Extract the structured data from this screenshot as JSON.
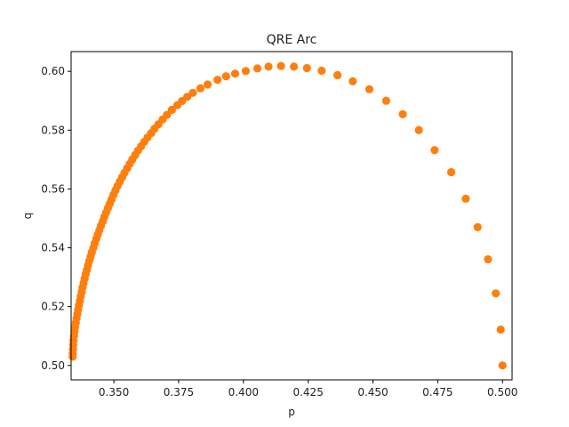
{
  "chart_data": {
    "type": "scatter",
    "title": "QRE Arc",
    "xlabel": "p",
    "ylabel": "q",
    "xlim": [
      0.3335,
      0.5037
    ],
    "ylim": [
      0.4951,
      0.6067
    ],
    "grid": false,
    "xticks": [
      "0.350",
      "0.375",
      "0.400",
      "0.425",
      "0.450",
      "0.475",
      "0.500"
    ],
    "yticks": [
      "0.50",
      "0.52",
      "0.54",
      "0.56",
      "0.58",
      "0.60"
    ],
    "marker_color": "#ff7f0e",
    "series": [
      {
        "values": [
          [
            0.5,
            0.5
          ],
          [
            0.4993,
            0.5122
          ],
          [
            0.4974,
            0.5245
          ],
          [
            0.4944,
            0.5361
          ],
          [
            0.4904,
            0.547
          ],
          [
            0.4858,
            0.5567
          ],
          [
            0.4802,
            0.5657
          ],
          [
            0.4738,
            0.5732
          ],
          [
            0.4677,
            0.58
          ],
          [
            0.4615,
            0.5854
          ],
          [
            0.4551,
            0.59
          ],
          [
            0.4486,
            0.5939
          ],
          [
            0.4422,
            0.5966
          ],
          [
            0.4363,
            0.5987
          ],
          [
            0.4302,
            0.6002
          ],
          [
            0.4245,
            0.6011
          ],
          [
            0.4195,
            0.6016
          ],
          [
            0.4145,
            0.6018
          ],
          [
            0.4097,
            0.6016
          ],
          [
            0.4054,
            0.601
          ],
          [
            0.4009,
            0.6001
          ],
          [
            0.3968,
            0.5992
          ],
          [
            0.3933,
            0.5983
          ],
          [
            0.39,
            0.5971
          ],
          [
            0.3862,
            0.5955
          ],
          [
            0.3834,
            0.5942
          ],
          [
            0.3805,
            0.5927
          ],
          [
            0.3783,
            0.5913
          ],
          [
            0.3763,
            0.5899
          ],
          [
            0.3745,
            0.5885
          ],
          [
            0.3724,
            0.5869
          ],
          [
            0.3705,
            0.5852
          ],
          [
            0.3688,
            0.5836
          ],
          [
            0.3672,
            0.582
          ],
          [
            0.3657,
            0.5805
          ],
          [
            0.3644,
            0.579
          ],
          [
            0.363,
            0.5775
          ],
          [
            0.3617,
            0.576
          ],
          [
            0.3605,
            0.5745
          ],
          [
            0.3593,
            0.573
          ],
          [
            0.3582,
            0.5715
          ],
          [
            0.3571,
            0.57
          ],
          [
            0.3561,
            0.5685
          ],
          [
            0.3551,
            0.567
          ],
          [
            0.3541,
            0.5655
          ],
          [
            0.3532,
            0.564
          ],
          [
            0.3523,
            0.5625
          ],
          [
            0.3514,
            0.561
          ],
          [
            0.3506,
            0.5595
          ],
          [
            0.3498,
            0.558
          ],
          [
            0.3491,
            0.5565
          ],
          [
            0.3484,
            0.555
          ],
          [
            0.3477,
            0.5535
          ],
          [
            0.347,
            0.552
          ],
          [
            0.3463,
            0.5505
          ],
          [
            0.3457,
            0.549
          ],
          [
            0.345,
            0.5475
          ],
          [
            0.3444,
            0.546
          ],
          [
            0.3438,
            0.5445
          ],
          [
            0.3432,
            0.543
          ],
          [
            0.3426,
            0.5415
          ],
          [
            0.3421,
            0.54
          ],
          [
            0.3415,
            0.5385
          ],
          [
            0.341,
            0.537
          ],
          [
            0.3405,
            0.5355
          ],
          [
            0.34,
            0.534
          ],
          [
            0.3396,
            0.5325
          ],
          [
            0.3391,
            0.531
          ],
          [
            0.3387,
            0.5295
          ],
          [
            0.3383,
            0.528
          ],
          [
            0.3379,
            0.5265
          ],
          [
            0.3376,
            0.525
          ],
          [
            0.3372,
            0.5235
          ],
          [
            0.3369,
            0.522
          ],
          [
            0.3365,
            0.5205
          ],
          [
            0.3362,
            0.519
          ],
          [
            0.3359,
            0.5175
          ],
          [
            0.3356,
            0.516
          ],
          [
            0.3353,
            0.5145
          ],
          [
            0.335,
            0.513
          ],
          [
            0.3348,
            0.5115
          ],
          [
            0.3346,
            0.51
          ],
          [
            0.3344,
            0.5085
          ],
          [
            0.3343,
            0.507
          ],
          [
            0.3342,
            0.5055
          ],
          [
            0.3341,
            0.504
          ],
          [
            0.3341,
            0.503
          ]
        ]
      }
    ]
  }
}
